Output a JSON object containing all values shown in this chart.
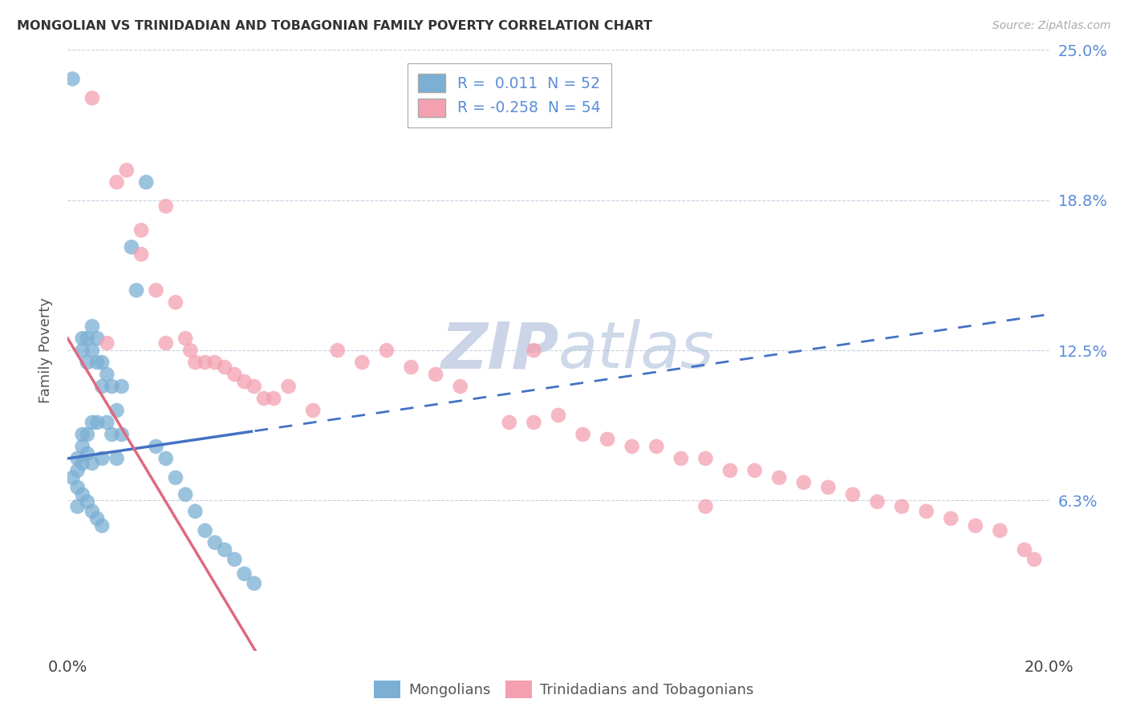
{
  "title": "MONGOLIAN VS TRINIDADIAN AND TOBAGONIAN FAMILY POVERTY CORRELATION CHART",
  "source": "Source: ZipAtlas.com",
  "ylabel": "Family Poverty",
  "xlim": [
    0,
    0.2
  ],
  "ylim": [
    0,
    0.25
  ],
  "yticks": [
    0.0625,
    0.125,
    0.1875,
    0.25
  ],
  "ytick_labels": [
    "6.3%",
    "12.5%",
    "18.8%",
    "25.0%"
  ],
  "xticks": [
    0.0,
    0.05,
    0.1,
    0.15,
    0.2
  ],
  "xtick_labels": [
    "0.0%",
    "",
    "",
    "",
    "20.0%"
  ],
  "mongolian_color": "#7bafd4",
  "trinidadian_color": "#f4a0b0",
  "mongolian_line_color": "#4472c4",
  "trinidadian_line_color": "#e06880",
  "background_color": "#ffffff",
  "watermark_color": "#ccd5e8",
  "R_mongolian": 0.011,
  "N_mongolian": 52,
  "R_trinidadian": -0.258,
  "N_trinidadian": 54,
  "mon_line_intercept": 0.08,
  "mon_line_slope": 0.3,
  "tri_line_intercept": 0.13,
  "tri_line_slope": -3.4,
  "mongolian_x": [
    0.001,
    0.002,
    0.002,
    0.002,
    0.003,
    0.003,
    0.003,
    0.003,
    0.003,
    0.004,
    0.004,
    0.004,
    0.004,
    0.005,
    0.005,
    0.005,
    0.005,
    0.006,
    0.006,
    0.006,
    0.007,
    0.007,
    0.007,
    0.008,
    0.008,
    0.009,
    0.009,
    0.01,
    0.01,
    0.011,
    0.011,
    0.013,
    0.014,
    0.016,
    0.018,
    0.02,
    0.022,
    0.024,
    0.026,
    0.028,
    0.03,
    0.032,
    0.034,
    0.036,
    0.038,
    0.001,
    0.002,
    0.003,
    0.004,
    0.005,
    0.006,
    0.007
  ],
  "mongolian_y": [
    0.238,
    0.08,
    0.075,
    0.06,
    0.13,
    0.125,
    0.09,
    0.085,
    0.078,
    0.13,
    0.12,
    0.09,
    0.082,
    0.135,
    0.125,
    0.095,
    0.078,
    0.13,
    0.12,
    0.095,
    0.12,
    0.11,
    0.08,
    0.115,
    0.095,
    0.11,
    0.09,
    0.1,
    0.08,
    0.11,
    0.09,
    0.168,
    0.15,
    0.195,
    0.085,
    0.08,
    0.072,
    0.065,
    0.058,
    0.05,
    0.045,
    0.042,
    0.038,
    0.032,
    0.028,
    0.072,
    0.068,
    0.065,
    0.062,
    0.058,
    0.055,
    0.052
  ],
  "trinidadian_x": [
    0.005,
    0.01,
    0.012,
    0.015,
    0.015,
    0.02,
    0.02,
    0.022,
    0.024,
    0.025,
    0.026,
    0.028,
    0.03,
    0.032,
    0.034,
    0.036,
    0.038,
    0.04,
    0.042,
    0.045,
    0.05,
    0.055,
    0.06,
    0.065,
    0.07,
    0.075,
    0.08,
    0.09,
    0.095,
    0.1,
    0.105,
    0.11,
    0.115,
    0.12,
    0.125,
    0.13,
    0.135,
    0.14,
    0.145,
    0.15,
    0.155,
    0.16,
    0.165,
    0.17,
    0.175,
    0.18,
    0.185,
    0.19,
    0.195,
    0.197,
    0.008,
    0.018,
    0.095,
    0.13
  ],
  "trinidadian_y": [
    0.23,
    0.195,
    0.2,
    0.175,
    0.165,
    0.185,
    0.128,
    0.145,
    0.13,
    0.125,
    0.12,
    0.12,
    0.12,
    0.118,
    0.115,
    0.112,
    0.11,
    0.105,
    0.105,
    0.11,
    0.1,
    0.125,
    0.12,
    0.125,
    0.118,
    0.115,
    0.11,
    0.095,
    0.095,
    0.098,
    0.09,
    0.088,
    0.085,
    0.085,
    0.08,
    0.08,
    0.075,
    0.075,
    0.072,
    0.07,
    0.068,
    0.065,
    0.062,
    0.06,
    0.058,
    0.055,
    0.052,
    0.05,
    0.042,
    0.038,
    0.128,
    0.15,
    0.125,
    0.06
  ]
}
